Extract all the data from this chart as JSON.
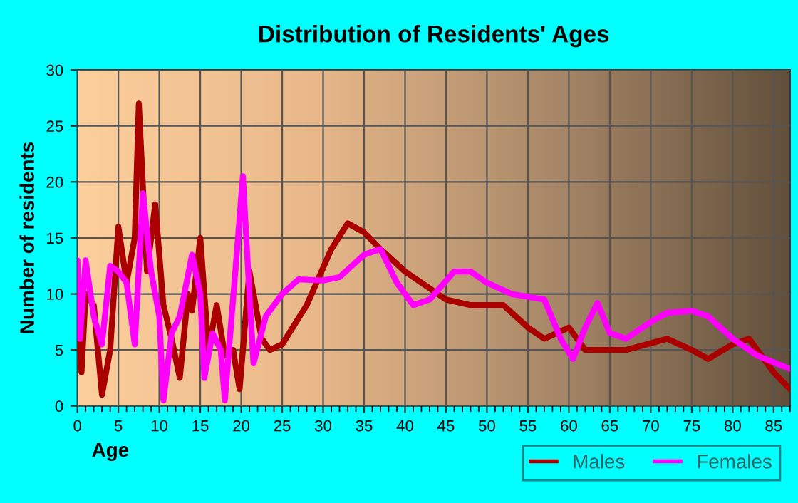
{
  "chart_data": {
    "type": "line",
    "title": "Distribution of Residents' Ages",
    "xlabel": "Age",
    "ylabel": "Number of residents",
    "xlim": [
      0,
      87
    ],
    "xticks": [
      0,
      5,
      10,
      15,
      20,
      25,
      30,
      35,
      40,
      45,
      50,
      55,
      60,
      65,
      70,
      75,
      80,
      85
    ],
    "ylim": [
      0,
      30
    ],
    "yticks": [
      0,
      5,
      10,
      15,
      20,
      25,
      30
    ],
    "grid": true,
    "legend": "bottom right",
    "series": [
      {
        "name": "Males",
        "color": "#aa0000",
        "x": [
          0,
          0.5,
          1,
          2,
          3,
          4,
          5,
          6,
          7,
          7.5,
          8.5,
          9.5,
          10.5,
          11.5,
          12.5,
          13.5,
          14,
          15,
          16,
          17,
          18,
          19,
          19.8,
          21,
          22.5,
          23.5,
          25,
          28,
          31,
          33,
          35,
          37,
          40,
          45,
          48,
          52,
          55,
          57,
          60,
          62,
          64,
          67,
          72,
          75,
          77,
          80,
          82,
          85,
          87
        ],
        "values": [
          10,
          3,
          10,
          9,
          1,
          5,
          16,
          11,
          15,
          27,
          12,
          18,
          9,
          6,
          2.5,
          10,
          8.5,
          15,
          5,
          9,
          4.5,
          5,
          1.5,
          12,
          6,
          5,
          5.5,
          9,
          14,
          16.3,
          15.5,
          14,
          12,
          9.5,
          9,
          9,
          7,
          6,
          7,
          5,
          5,
          5,
          6,
          5,
          4.2,
          5.5,
          6,
          3,
          1.5
        ]
      },
      {
        "name": "Females",
        "color": "#ff00ff",
        "x": [
          0,
          0.3,
          1,
          2,
          3,
          4,
          5,
          6,
          7,
          8,
          9,
          10,
          10.5,
          11.5,
          12.5,
          14,
          15,
          15.5,
          16.5,
          17.5,
          18,
          19.5,
          20.2,
          21,
          21.5,
          23,
          25,
          27,
          30,
          32,
          35,
          37,
          39,
          41,
          43,
          46,
          48,
          50,
          53,
          57,
          59,
          60.5,
          62,
          63.5,
          65,
          67,
          70,
          72,
          75,
          77,
          80,
          83,
          87
        ],
        "values": [
          13,
          6,
          13,
          8,
          5.5,
          12.5,
          12,
          11,
          5.5,
          19,
          12,
          8,
          0.5,
          6.5,
          8,
          13.5,
          10,
          2.5,
          6.5,
          5,
          0.5,
          14,
          20.5,
          10,
          3.8,
          8,
          10,
          11.3,
          11.2,
          11.5,
          13.5,
          14,
          11,
          9,
          9.5,
          12,
          12,
          11,
          10,
          9.5,
          6,
          4.2,
          7,
          9.2,
          6.5,
          6,
          7.5,
          8.3,
          8.5,
          8,
          6,
          4.5,
          3.3
        ]
      }
    ]
  }
}
